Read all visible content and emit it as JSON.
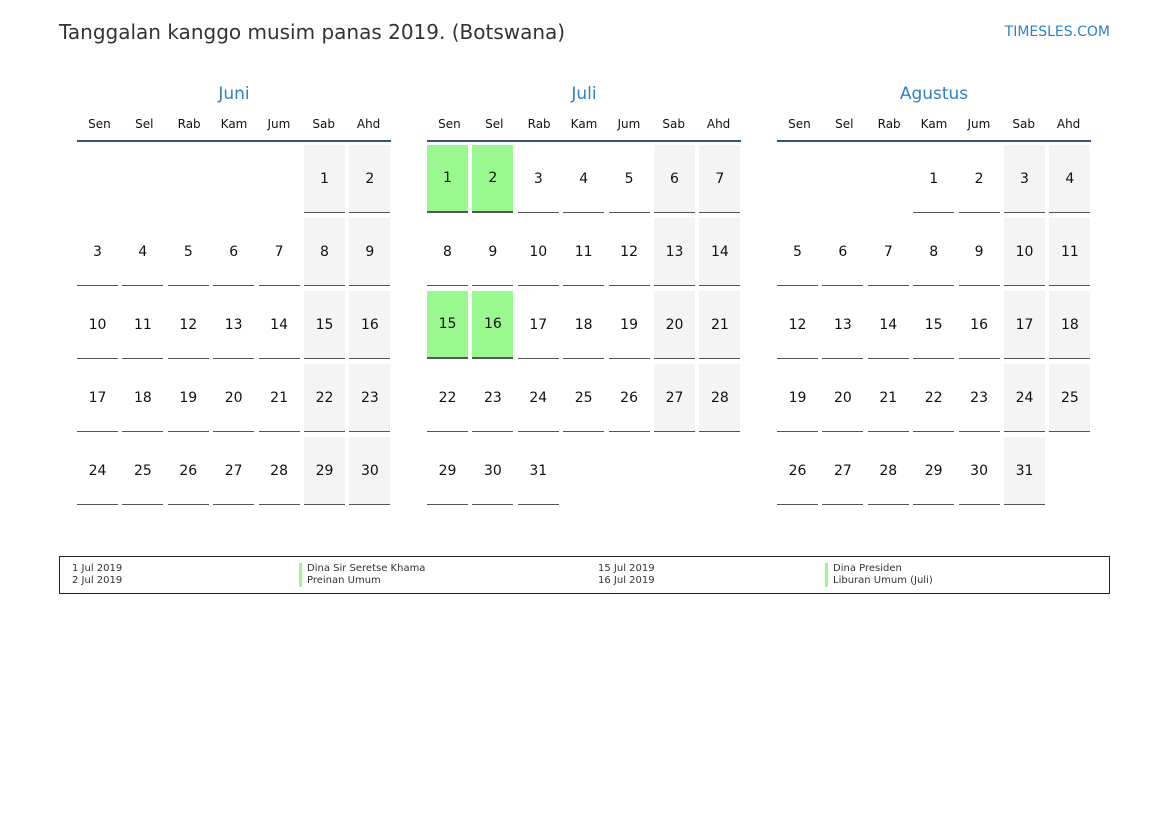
{
  "title": "Tanggalan kanggo musim panas 2019. (Botswana)",
  "brand": "TIMESLES.COM",
  "colors": {
    "accent": "#2f7fc9",
    "holiday": "#99f98e",
    "weekend": "#f4f4f4"
  },
  "weekdays": [
    "Sen",
    "Sel",
    "Rab",
    "Kam",
    "Jum",
    "Sab",
    "Ahd"
  ],
  "months": [
    {
      "name": "Juni",
      "first_weekday": "Sab",
      "days": 30,
      "holidays": []
    },
    {
      "name": "Juli",
      "first_weekday": "Sen",
      "days": 31,
      "holidays": [
        1,
        2,
        15,
        16
      ]
    },
    {
      "name": "Agustus",
      "first_weekday": "Kam",
      "days": 31,
      "holidays": []
    }
  ],
  "legend": [
    {
      "dates": [
        "1 Jul 2019",
        "2 Jul 2019"
      ],
      "names": [
        "Dina Sir Seretse Khama",
        "Preinan Umum"
      ]
    },
    {
      "dates": [
        "15 Jul 2019",
        "16 Jul 2019"
      ],
      "names": [
        "Dina Presiden",
        "Liburan Umum (Juli)"
      ]
    }
  ]
}
